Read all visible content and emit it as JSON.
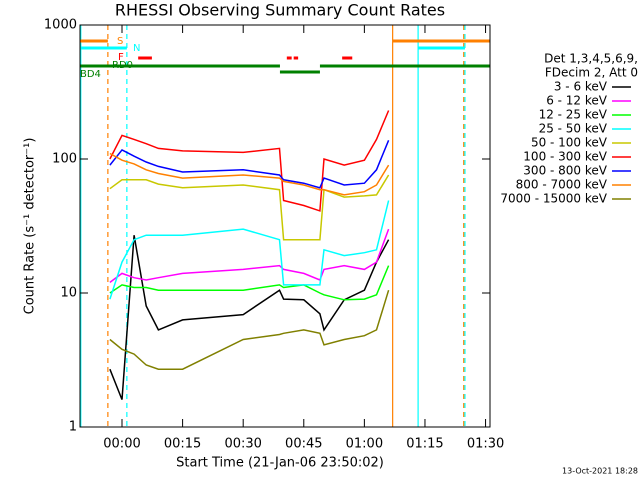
{
  "chart_data": {
    "type": "line",
    "title": "RHESSI Observing Summary Count Rates",
    "xlabel": "Start Time (21-Jan-06 23:50:02)",
    "ylabel": "Count Rate (s⁻¹ detector⁻¹)",
    "ylog": true,
    "xlim": [
      -10.4,
      91.1
    ],
    "ylim": [
      1,
      1000
    ],
    "xticks": [
      {
        "value": 0,
        "label": "00:00"
      },
      {
        "value": 15,
        "label": "00:15"
      },
      {
        "value": 30,
        "label": "00:30"
      },
      {
        "value": 45,
        "label": "00:45"
      },
      {
        "value": 60,
        "label": "01:00"
      },
      {
        "value": 75,
        "label": "01:15"
      },
      {
        "value": 90,
        "label": "01:30"
      }
    ],
    "yticks": [
      1,
      10,
      100,
      1000
    ],
    "legend_header": [
      "Det 1,3,4,5,6,9,",
      "FDecim 2, Att 0"
    ],
    "x": [
      -3,
      0,
      3,
      6,
      9,
      15,
      30,
      39,
      40,
      45,
      49,
      50,
      55,
      60,
      63,
      66
    ],
    "series": [
      {
        "name": "3 - 6 keV",
        "color": "#000000",
        "values": [
          2.7,
          1.6,
          27,
          8,
          5.3,
          6.3,
          6.9,
          10.5,
          9,
          8.9,
          7,
          5.3,
          8.9,
          10.5,
          17,
          25
        ]
      },
      {
        "name": "6 - 12 keV",
        "color": "#ff00ff",
        "values": [
          12,
          14,
          13,
          12.5,
          13,
          14,
          15,
          16,
          15,
          14,
          12.5,
          15,
          16,
          15,
          17,
          30
        ]
      },
      {
        "name": "12 - 25 keV",
        "color": "#00ff00",
        "values": [
          10,
          11.5,
          11,
          11,
          10.5,
          10.5,
          10.5,
          11.5,
          11,
          11.5,
          10,
          9.7,
          8.9,
          9,
          9.7,
          16
        ]
      },
      {
        "name": "25 - 50 keV",
        "color": "#00ffff",
        "values": [
          9,
          17,
          25,
          27,
          27,
          27,
          30,
          25,
          11.5,
          11.5,
          11.5,
          21,
          19,
          20,
          21,
          49
        ]
      },
      {
        "name": "50 - 100 keV",
        "color": "#c8c800",
        "values": [
          60,
          70,
          70,
          70,
          65,
          61,
          64,
          59,
          25,
          25,
          25,
          59,
          52,
          53,
          54,
          76
        ]
      },
      {
        "name": "100 - 300 keV",
        "color": "#ff0000",
        "values": [
          100,
          150,
          140,
          130,
          120,
          115,
          112,
          120,
          49,
          45,
          41,
          100,
          90,
          98,
          140,
          230
        ]
      },
      {
        "name": "300 - 800 keV",
        "color": "#0000ff",
        "values": [
          90,
          117,
          105,
          95,
          88,
          80,
          83,
          76,
          70,
          66,
          61,
          72,
          64,
          66,
          83,
          138
        ]
      },
      {
        "name": "800 - 7000 keV",
        "color": "#ff8000",
        "values": [
          110,
          98,
          92,
          83,
          78,
          72,
          76,
          72,
          68,
          64,
          59,
          59,
          54,
          57,
          64,
          90
        ]
      },
      {
        "name": "7000 - 15000 keV",
        "color": "#808000",
        "values": [
          4.5,
          3.8,
          3.5,
          2.9,
          2.7,
          2.7,
          4.5,
          4.9,
          5,
          5.3,
          5,
          4.1,
          4.5,
          4.8,
          5.3,
          10.5
        ]
      }
    ],
    "markers": [
      {
        "x": -10.2,
        "color": "#00ffff",
        "dashed": false
      },
      {
        "x": -3.5,
        "color": "#ff8000",
        "dashed": true
      },
      {
        "x": 1.2,
        "color": "#00ffff",
        "dashed": true
      },
      {
        "x": 67,
        "color": "#ff8000",
        "dashed": false
      },
      {
        "x": 73.3,
        "color": "#00ffff",
        "dashed": false
      },
      {
        "x": 84.6,
        "color": "#ff8000",
        "dashed": true
      },
      {
        "x": 84.9,
        "color": "#00ffff",
        "dashed": true
      }
    ],
    "flags": [
      {
        "label": "S",
        "color": "#ff8000",
        "segments": [
          [
            -10.4,
            -3.5
          ],
          [
            67,
            91.1
          ]
        ]
      },
      {
        "label": "N",
        "color": "#00ffff",
        "segments": [
          [
            -10.4,
            1.2
          ],
          [
            73.3,
            84.9
          ]
        ]
      },
      {
        "label": "F",
        "color": "#ff0000",
        "segments": [
          [
            4,
            7.4
          ],
          [
            40.8,
            42
          ],
          [
            42.5,
            43.6
          ],
          [
            54.5,
            57
          ]
        ]
      },
      {
        "label": "RD0",
        "color": "#008000",
        "segments": [
          [
            -10.4,
            39.1
          ],
          [
            49,
            91.1
          ]
        ]
      },
      {
        "label": "BD4",
        "color": "#008000",
        "segments": [
          [
            39.1,
            49
          ]
        ]
      }
    ],
    "footer": "13-Oct-2021 18:28"
  }
}
